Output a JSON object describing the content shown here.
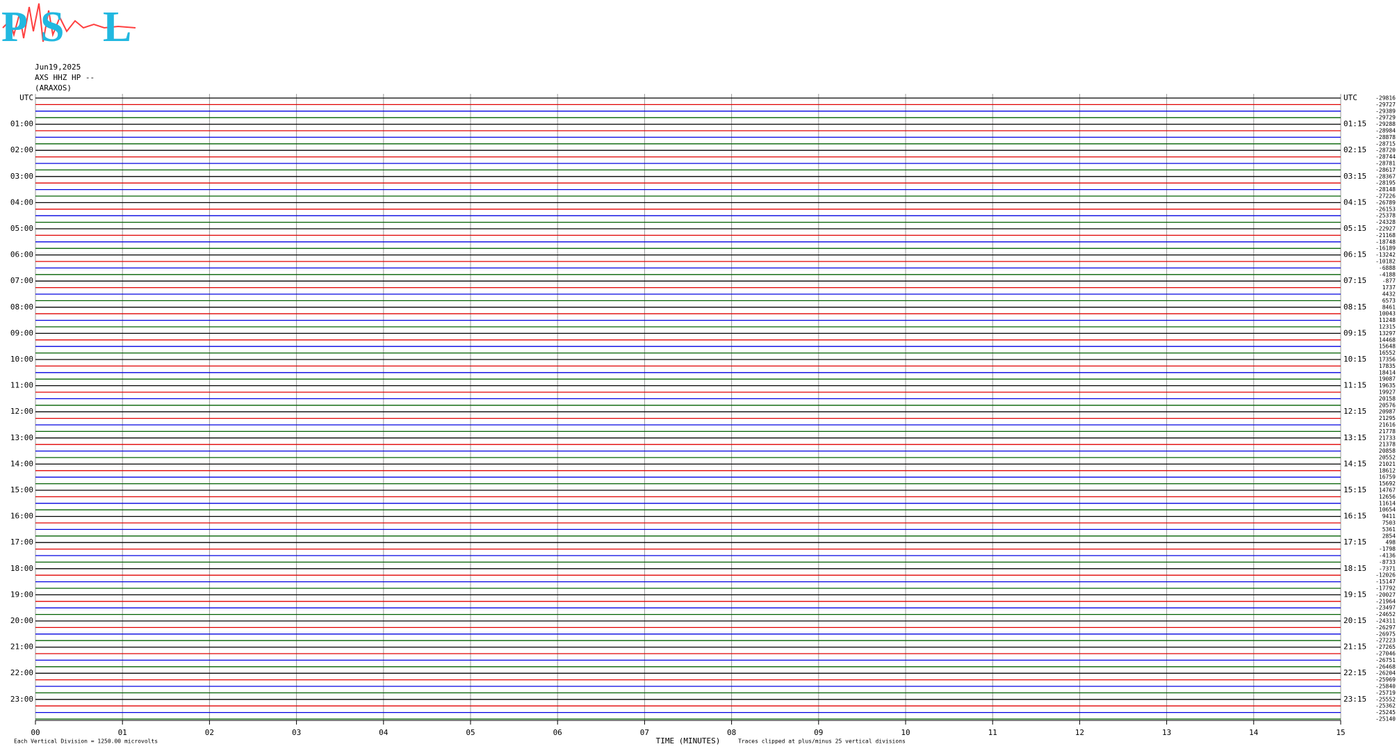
{
  "logo": {
    "letters": [
      "P",
      "S",
      "L"
    ]
  },
  "chart_data": {
    "type": "helicorder",
    "date": "Jun19,2025",
    "station": "AXS HHZ HP --",
    "location": "(ARAXOS)",
    "x_label": "TIME (MINUTES)",
    "scale_note": "Each Vertical Division = 1250.00 microvolts",
    "clip_note": "Traces clipped at plus/minus 25 vertical divisions",
    "xlim": [
      0,
      15
    ],
    "xticks": [
      {
        "value": 0,
        "label": "00"
      },
      {
        "value": 1,
        "label": "01"
      },
      {
        "value": 2,
        "label": "02"
      },
      {
        "value": 3,
        "label": "03"
      },
      {
        "value": 4,
        "label": "04"
      },
      {
        "value": 5,
        "label": "05"
      },
      {
        "value": 6,
        "label": "06"
      },
      {
        "value": 7,
        "label": "07"
      },
      {
        "value": 8,
        "label": "08"
      },
      {
        "value": 9,
        "label": "09"
      },
      10,
      11,
      12,
      13,
      14,
      15
    ],
    "grid": true,
    "trace_colors": [
      "#000000",
      "#e00000",
      "#0000e0",
      "#006000"
    ],
    "left_labels": [
      "UTC",
      "01:00",
      "02:00",
      "03:00",
      "04:00",
      "05:00",
      "06:00",
      "07:00",
      "08:00",
      "09:00",
      "10:00",
      "11:00",
      "12:00",
      "13:00",
      "14:00",
      "15:00",
      "16:00",
      "17:00",
      "18:00",
      "19:00",
      "20:00",
      "21:00",
      "22:00",
      "23:00"
    ],
    "right_labels": [
      "UTC",
      "01:15",
      "02:15",
      "03:15",
      "04:15",
      "05:15",
      "06:15",
      "07:15",
      "08:15",
      "09:15",
      "10:15",
      "11:15",
      "12:15",
      "13:15",
      "14:15",
      "15:15",
      "16:15",
      "17:15",
      "18:15",
      "19:15",
      "20:15",
      "21:15",
      "22:15",
      "23:15"
    ],
    "trace_values": [
      -29816,
      -29727,
      -29389,
      -29729,
      -29288,
      -28984,
      -28878,
      -28715,
      -28720,
      -28744,
      -28781,
      -28617,
      -28367,
      -28195,
      -28148,
      -27226,
      -26789,
      -26153,
      -25378,
      -24328,
      -22927,
      -21168,
      -18748,
      -16189,
      -13242,
      -10182,
      -6888,
      -4188,
      -877,
      1737,
      4432,
      6573,
      8461,
      10043,
      11248,
      12315,
      13297,
      14468,
      15648,
      16552,
      17356,
      17835,
      18414,
      19087,
      19635,
      19927,
      20158,
      20576,
      20987,
      21295,
      21616,
      21778,
      21733,
      21378,
      20858,
      20552,
      21021,
      18612,
      16759,
      15692,
      14767,
      12656,
      11614,
      10654,
      9411,
      7503,
      5361,
      2854,
      498,
      -1798,
      -4136,
      -8733,
      -7371,
      -12026,
      -15147,
      -17792,
      -20027,
      -21964,
      -23497,
      -24652,
      -24311,
      -26297,
      -26975,
      -27223,
      -27265,
      -27046,
      -26751,
      -26468,
      -26204,
      -25969,
      -25840,
      -25719,
      -25552,
      -25362,
      -25245,
      -25140
    ]
  }
}
